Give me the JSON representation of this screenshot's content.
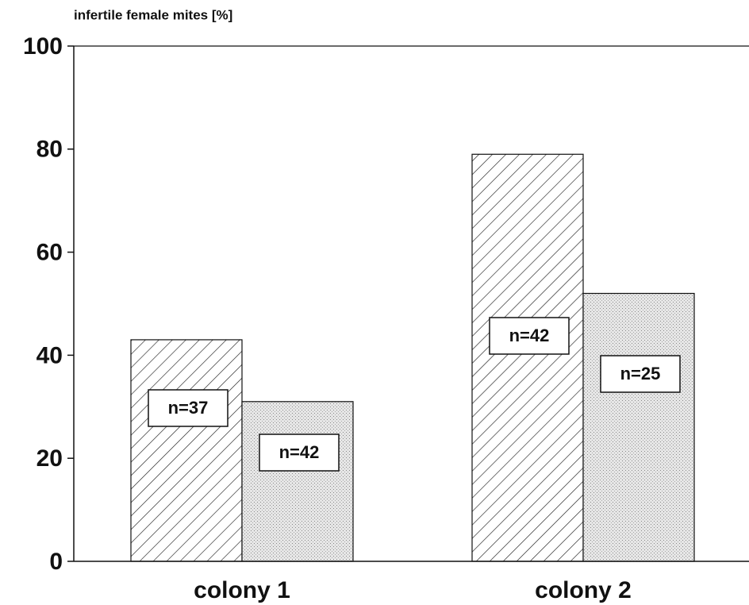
{
  "chart_data": {
    "type": "bar",
    "y_label": "infertile female mites [%]",
    "categories": [
      "colony 1",
      "colony 2"
    ],
    "series": [
      {
        "pattern": "hatch",
        "values": [
          43,
          79
        ],
        "labels": [
          "n=37",
          "n=42"
        ]
      },
      {
        "pattern": "stipple",
        "values": [
          31,
          52
        ],
        "labels": [
          "n=42",
          "n=25"
        ]
      }
    ],
    "ylim": [
      0,
      100
    ],
    "yticks": [
      0,
      20,
      40,
      60,
      80,
      100
    ]
  }
}
